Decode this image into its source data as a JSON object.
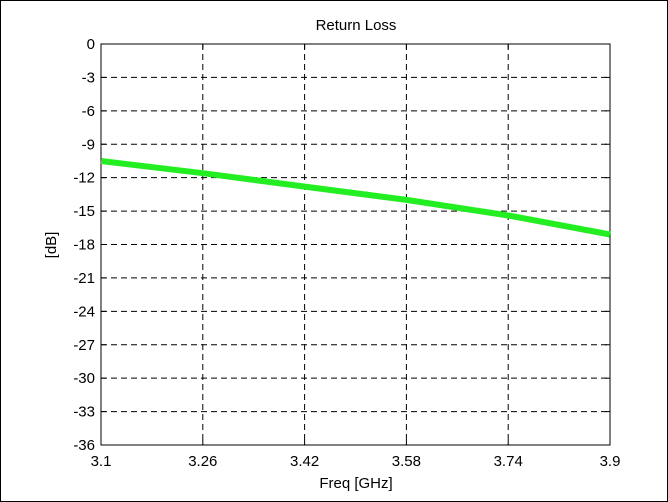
{
  "chart_data": {
    "type": "line",
    "title": "Return Loss",
    "xlabel": "Freq [GHz]",
    "ylabel": "[dB]",
    "xlim": [
      3.1,
      3.9
    ],
    "ylim": [
      -36,
      0
    ],
    "xticks": [
      3.1,
      3.26,
      3.42,
      3.58,
      3.74,
      3.9
    ],
    "xtick_labels": [
      "3.1",
      "3.26",
      "3.42",
      "3.58",
      "3.74",
      "3.9"
    ],
    "yticks": [
      0,
      -3,
      -6,
      -9,
      -12,
      -15,
      -18,
      -21,
      -24,
      -27,
      -30,
      -33,
      -36
    ],
    "ytick_labels": [
      "0",
      "-3",
      "-6",
      "-9",
      "-12",
      "-15",
      "-18",
      "-21",
      "-24",
      "-27",
      "-30",
      "-33",
      "-36"
    ],
    "grid": true,
    "grid_style": "dashed",
    "series": [
      {
        "color": "#22ee22",
        "x": [
          3.1,
          3.26,
          3.42,
          3.58,
          3.74,
          3.9
        ],
        "y": [
          -10.5,
          -11.6,
          -12.8,
          -14.0,
          -15.4,
          -17.1
        ]
      }
    ]
  }
}
